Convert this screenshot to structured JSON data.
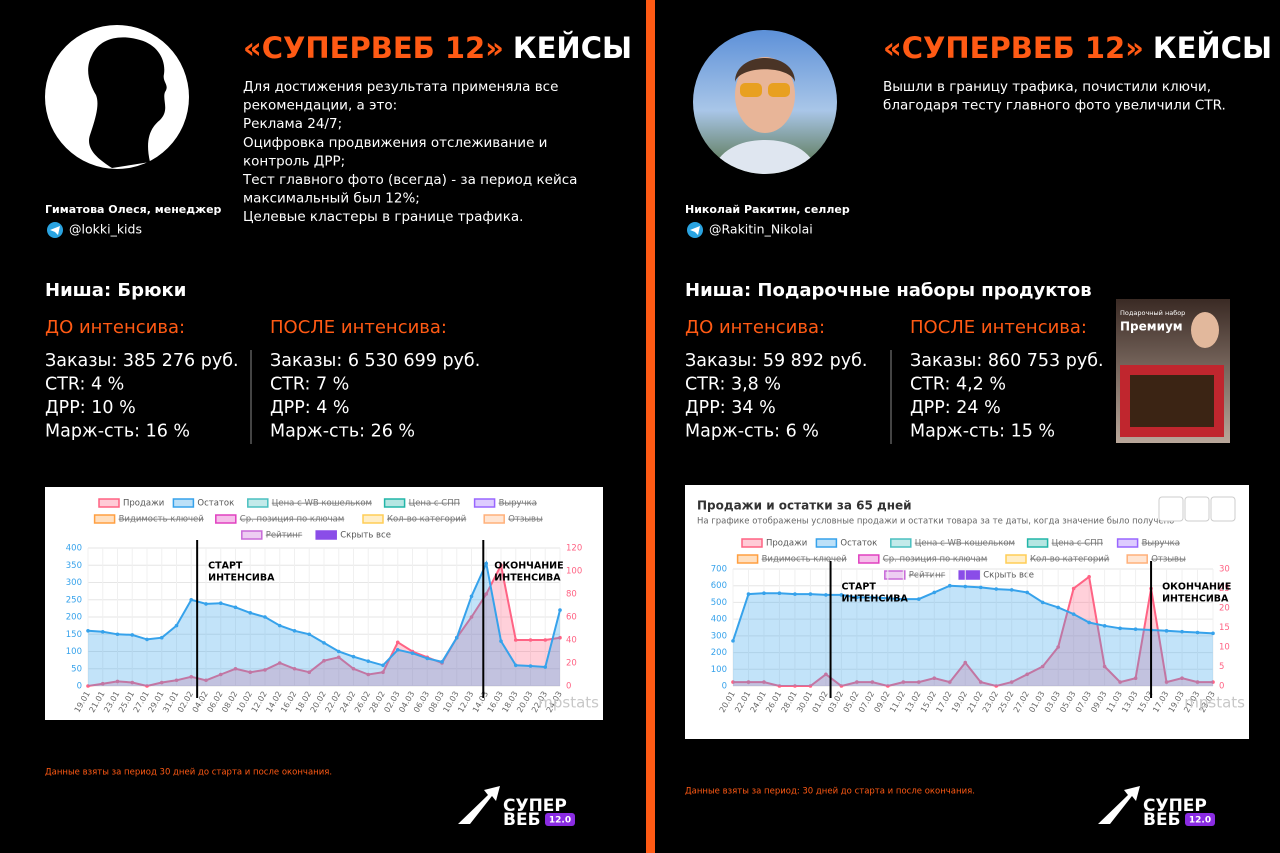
{
  "cases": [
    {
      "title_accent": "«СУПЕРВЕБ 12»",
      "title_rest": "КЕЙСЫ",
      "body": [
        "Для достижения результата применяла все",
        "рекомендации, а это:",
        "Реклама 24/7;",
        "Оцифровка продвижения отслеживание и",
        "контроль ДРР;",
        "Тест главного фото (всегда) - за период кейса",
        "максимальный был 12%;",
        "Целевые кластеры в границе трафика."
      ],
      "person": "Гиматова Олеся, менеджер",
      "handle": "@lokki_kids",
      "niche": "Ниша: Брюки",
      "before": {
        "heading": "ДО интенсива:",
        "lines": [
          "Заказы: 385 276 руб.",
          "CTR: 4 %",
          "ДРР: 10 %",
          "Марж-сть: 16 %"
        ]
      },
      "after": {
        "heading": "ПОСЛЕ интенсива:",
        "lines": [
          "Заказы: 6 530 699 руб.",
          "CTR: 7 %",
          "ДРР: 4 %",
          "Марж-сть: 26 %"
        ]
      },
      "note": "Данные взяты за период 30 дней до старта и после окончания.",
      "logo": [
        "СУПЕР",
        "ВЕБ",
        "12.0"
      ]
    },
    {
      "title_accent": "«СУПЕРВЕБ 12»",
      "title_rest": "КЕЙСЫ",
      "body": [
        "Вышли в границу трафика, почистили ключи,",
        "благодаря тесту главного фото увеличили CTR."
      ],
      "person": "Николай Ракитин, селлер",
      "handle": "@Rakitin_Nikolai",
      "niche": "Ниша: Подарочные наборы продуктов",
      "before": {
        "heading": "ДО интенсива:",
        "lines": [
          "Заказы: 59 892 руб.",
          "CTR: 3,8 %",
          "ДРР: 34 %",
          "Марж-сть: 6 %"
        ]
      },
      "after": {
        "heading": "ПОСЛЕ интенсива:",
        "lines": [
          "Заказы: 860 753 руб.",
          "CTR: 4,2 %",
          "ДРР: 24 %",
          "Марж-сть: 15 %"
        ]
      },
      "note": "Данные взяты за период: 30 дней до старта и после окончания.",
      "logo": [
        "СУПЕР",
        "ВЕБ",
        "12.0"
      ],
      "product_image": [
        "Подарочный набор",
        "Премиум"
      ]
    }
  ],
  "chart_data": [
    {
      "type": "area",
      "categories": [
        "19.01",
        "21.01",
        "23.01",
        "25.01",
        "27.01",
        "29.01",
        "31.01",
        "02.02",
        "04.02",
        "06.02",
        "08.02",
        "10.02",
        "12.02",
        "14.02",
        "16.02",
        "18.02",
        "20.02",
        "22.02",
        "24.02",
        "26.02",
        "28.02",
        "02.03",
        "04.03",
        "06.03",
        "08.03",
        "10.03",
        "12.03",
        "14.03",
        "16.03",
        "18.03",
        "20.03",
        "22.03",
        "24.03"
      ],
      "series": [
        {
          "name": "Продажи",
          "color": "#ff6384",
          "axis": "y2",
          "values": [
            0,
            2,
            4,
            3,
            0,
            3,
            5,
            8,
            5,
            10,
            15,
            12,
            14,
            20,
            15,
            12,
            22,
            25,
            15,
            10,
            12,
            38,
            30,
            25,
            20,
            42,
            60,
            80,
            105,
            40,
            40,
            40,
            42
          ]
        },
        {
          "name": "Остаток",
          "color": "#36a2eb",
          "axis": "y",
          "values": [
            160,
            157,
            150,
            148,
            135,
            140,
            175,
            250,
            238,
            240,
            228,
            212,
            200,
            175,
            160,
            150,
            125,
            100,
            85,
            72,
            60,
            105,
            95,
            80,
            70,
            140,
            260,
            355,
            130,
            60,
            58,
            55,
            220
          ]
        }
      ],
      "hidden_series": [
        {
          "name": "Цена с WB кошельком",
          "color": "#4bc0c0"
        },
        {
          "name": "Цена с СПП",
          "color": "#22b5a8"
        },
        {
          "name": "Выручка",
          "color": "#9966ff"
        },
        {
          "name": "Видимость ключей",
          "color": "#ff9f40"
        },
        {
          "name": "Ср. позиция по ключам",
          "color": "#e040c0"
        },
        {
          "name": "Кол-во категорий",
          "color": "#ffcd56"
        },
        {
          "name": "Отзывы",
          "color": "#ffb07a"
        },
        {
          "name": "Рейтинг",
          "color": "#c86ad8"
        }
      ],
      "hide_all": {
        "name": "Скрыть все",
        "color": "#8a4de8"
      },
      "ylim": [
        0,
        400
      ],
      "yticks": [
        0,
        50,
        100,
        150,
        200,
        250,
        300,
        350,
        400
      ],
      "y2lim": [
        0,
        120
      ],
      "y2ticks": [
        0,
        20,
        40,
        60,
        80,
        100,
        120
      ],
      "annotations": [
        [
          "СТАРТ",
          "ИНТЕНСИВА"
        ],
        [
          "ОКОНЧАНИЕ",
          "ИНТЕНСИВА"
        ]
      ],
      "watermark": "mpstats",
      "grid": true
    },
    {
      "type": "area",
      "title": "Продажи и остатки за 65 дней",
      "subtitle": "На графике отображены условные продажи и остатки товара за те даты, когда значение было получено",
      "categories": [
        "20.01",
        "22.01",
        "24.01",
        "26.01",
        "28.01",
        "30.01",
        "01.02",
        "03.02",
        "05.02",
        "07.02",
        "09.02",
        "11.02",
        "13.02",
        "15.02",
        "17.02",
        "19.02",
        "21.02",
        "23.02",
        "25.02",
        "27.02",
        "01.03",
        "03.03",
        "05.03",
        "07.03",
        "09.03",
        "11.03",
        "13.03",
        "15.03",
        "17.03",
        "19.03",
        "21.03",
        "23.03"
      ],
      "series": [
        {
          "name": "Продажи",
          "color": "#ff6384",
          "axis": "y2",
          "values": [
            1,
            1,
            1,
            0,
            0,
            0,
            3,
            0,
            1,
            1,
            0,
            1,
            1,
            2,
            1,
            6,
            1,
            0,
            1,
            3,
            5,
            10,
            25,
            28,
            5,
            1,
            2,
            25,
            1,
            2,
            1,
            1
          ]
        },
        {
          "name": "Остаток",
          "color": "#36a2eb",
          "axis": "y",
          "values": [
            270,
            550,
            555,
            555,
            550,
            550,
            545,
            545,
            530,
            530,
            525,
            520,
            520,
            560,
            600,
            595,
            590,
            580,
            575,
            560,
            500,
            470,
            430,
            380,
            360,
            345,
            340,
            335,
            330,
            325,
            320,
            315
          ]
        }
      ],
      "hidden_series": [
        {
          "name": "Цена с WB кошельком",
          "color": "#4bc0c0"
        },
        {
          "name": "Цена с СПП",
          "color": "#22b5a8"
        },
        {
          "name": "Выручка",
          "color": "#9966ff"
        },
        {
          "name": "Видимость ключей",
          "color": "#ff9f40"
        },
        {
          "name": "Ср. позиция по ключам",
          "color": "#e040c0"
        },
        {
          "name": "Кол-во категорий",
          "color": "#ffcd56"
        },
        {
          "name": "Отзывы",
          "color": "#ffb07a"
        },
        {
          "name": "Рейтинг",
          "color": "#c86ad8"
        }
      ],
      "hide_all": {
        "name": "Скрыть все",
        "color": "#8a4de8"
      },
      "ylim": [
        0,
        700
      ],
      "yticks": [
        0,
        100,
        200,
        300,
        400,
        500,
        600,
        700
      ],
      "y2lim": [
        0,
        30
      ],
      "y2ticks": [
        0,
        5,
        10,
        15,
        20,
        25,
        30
      ],
      "annotations": [
        [
          "СТАРТ",
          "ИНТЕНСИВА"
        ],
        [
          "ОКОНЧАНИЕ",
          "ИНТЕНСИВА"
        ]
      ],
      "watermark": "mpstats",
      "grid": true
    }
  ]
}
